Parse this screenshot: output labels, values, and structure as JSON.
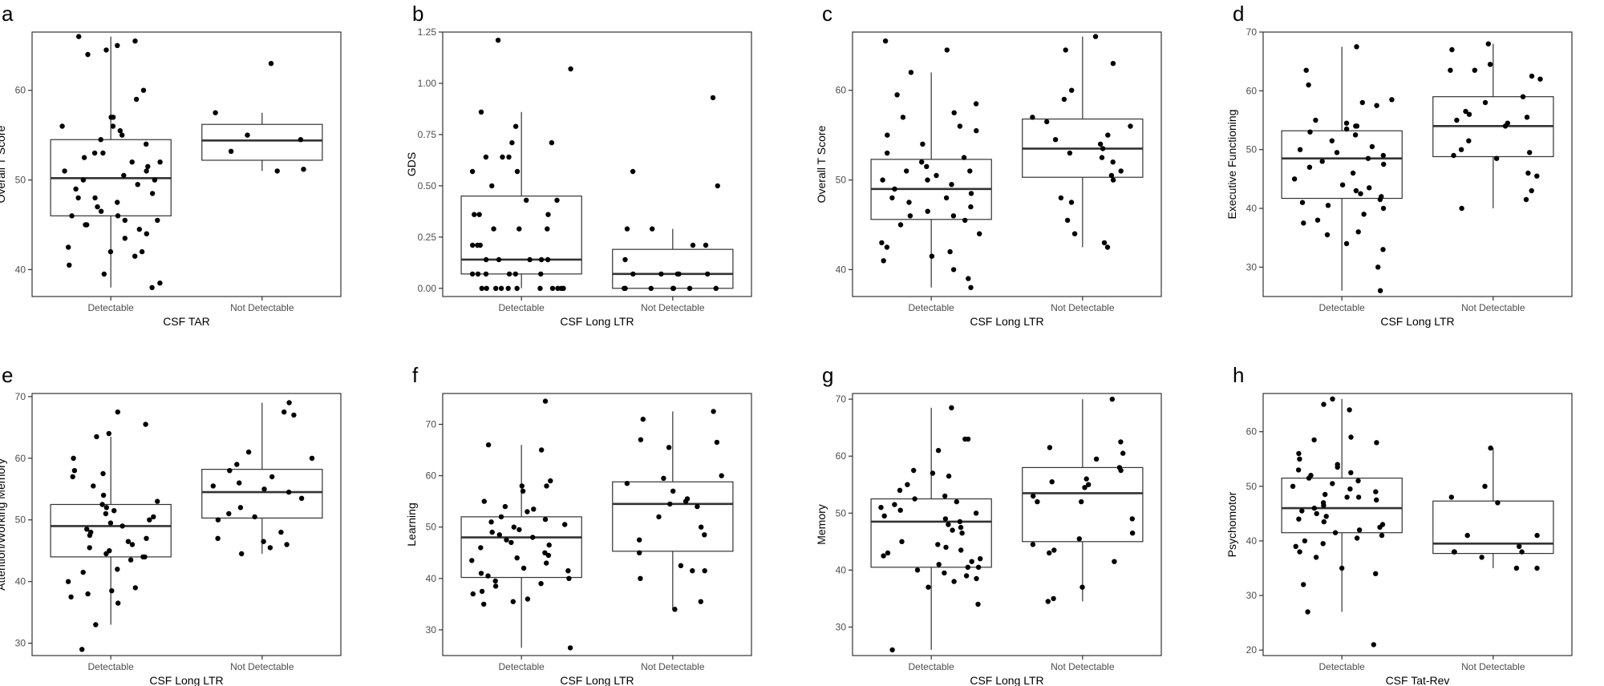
{
  "chart_data": [
    {
      "panel": "a",
      "type": "boxplot",
      "xlabel": "CSF TAR",
      "ylabel": "Overall T Score",
      "ylim": [
        37,
        66.5
      ],
      "yticks": [
        40,
        50,
        60
      ],
      "categories": [
        "Detectable",
        "Not Detectable"
      ],
      "boxes": [
        {
          "category": "Detectable",
          "whisker_low": 38,
          "q1": 46,
          "median": 50.2,
          "q3": 54.5,
          "whisker_high": 66
        },
        {
          "category": "Not Detectable",
          "whisker_low": 51,
          "q1": 52.2,
          "median": 54.4,
          "q3": 56.2,
          "whisker_high": 57.5
        }
      ],
      "points": [
        [
          66,
          65.5,
          65,
          64.5,
          64,
          60,
          59,
          57,
          57,
          56,
          56,
          55.5,
          55,
          54.5,
          54,
          53,
          53,
          52.5,
          52,
          52,
          51.5,
          51,
          51,
          50.5,
          50,
          50,
          49.5,
          49,
          48.5,
          48,
          48,
          47.5,
          47,
          46.5,
          46,
          46,
          45.5,
          45.5,
          45,
          45,
          44.5,
          44,
          43.5,
          42.5,
          42,
          42,
          41.5,
          40.5,
          39.5,
          38.5,
          38
        ],
        [
          63,
          57.5,
          55,
          54.5,
          53.2,
          51.2,
          51
        ]
      ]
    },
    {
      "panel": "b",
      "type": "boxplot",
      "xlabel": "CSF Long LTR",
      "ylabel": "GDS",
      "ylim": [
        -0.04,
        1.25
      ],
      "yticks": [
        0.0,
        0.25,
        0.5,
        0.75,
        1.0,
        1.25
      ],
      "ytick_labels": [
        "0.00",
        "0.25",
        "0.50",
        "0.75",
        "1.00",
        "1.25"
      ],
      "categories": [
        "Detectable",
        "Not Detectable"
      ],
      "boxes": [
        {
          "category": "Detectable",
          "whisker_low": 0,
          "q1": 0.07,
          "median": 0.14,
          "q3": 0.45,
          "whisker_high": 0.86
        },
        {
          "category": "Not Detectable",
          "whisker_low": 0,
          "q1": 0.0,
          "median": 0.07,
          "q3": 0.19,
          "whisker_high": 0.29
        }
      ],
      "points": [
        [
          1.21,
          1.07,
          0.86,
          0.79,
          0.71,
          0.71,
          0.64,
          0.64,
          0.64,
          0.57,
          0.57,
          0.5,
          0.43,
          0.43,
          0.36,
          0.36,
          0.36,
          0.29,
          0.29,
          0.29,
          0.21,
          0.21,
          0.21,
          0.14,
          0.14,
          0.14,
          0.14,
          0.14,
          0.07,
          0.07,
          0.07,
          0.07,
          0.07,
          0.07,
          0,
          0,
          0,
          0,
          0,
          0,
          0,
          0,
          0,
          0,
          0
        ],
        [
          0.93,
          0.57,
          0.5,
          0.29,
          0.29,
          0.21,
          0.21,
          0.14,
          0.07,
          0.07,
          0.07,
          0.07,
          0.07,
          0,
          0,
          0,
          0,
          0,
          0,
          0
        ]
      ]
    },
    {
      "panel": "c",
      "type": "boxplot",
      "xlabel": "CSF Long LTR",
      "ylabel": "Overall T Score",
      "ylim": [
        37,
        66.5
      ],
      "yticks": [
        40,
        50,
        60
      ],
      "categories": [
        "Detectable",
        "Not Detectable"
      ],
      "boxes": [
        {
          "category": "Detectable",
          "whisker_low": 38,
          "q1": 45.6,
          "median": 49,
          "q3": 52.3,
          "whisker_high": 62
        },
        {
          "category": "Not Detectable",
          "whisker_low": 42.5,
          "q1": 50.3,
          "median": 53.5,
          "q3": 56.8,
          "whisker_high": 66
        }
      ],
      "points": [
        [
          65.5,
          64.5,
          62,
          59.5,
          58.5,
          57.5,
          57,
          56,
          55.5,
          55,
          54,
          53,
          52.5,
          52,
          51.5,
          51,
          51,
          50.5,
          50,
          50,
          49.5,
          49,
          48.5,
          48,
          48,
          47.5,
          47,
          46.5,
          46,
          46,
          45.5,
          45,
          44,
          43,
          42.5,
          42,
          41.5,
          41,
          40,
          39,
          38
        ],
        [
          66,
          64.5,
          63,
          60,
          59,
          57,
          56.5,
          56,
          55,
          54.5,
          54,
          53.5,
          53,
          52.5,
          52,
          51,
          50.5,
          50,
          48,
          47.5,
          45.5,
          44,
          43,
          42.5
        ]
      ]
    },
    {
      "panel": "d",
      "type": "boxplot",
      "xlabel": "CSF Long LTR",
      "ylabel": "Executive Functioning",
      "ylim": [
        25,
        70
      ],
      "yticks": [
        30,
        40,
        50,
        60,
        70
      ],
      "categories": [
        "Detectable",
        "Not Detectable"
      ],
      "boxes": [
        {
          "category": "Detectable",
          "whisker_low": 26,
          "q1": 41.7,
          "median": 48.5,
          "q3": 53.2,
          "whisker_high": 67.5
        },
        {
          "category": "Not Detectable",
          "whisker_low": 40,
          "q1": 48.8,
          "median": 54,
          "q3": 59,
          "whisker_high": 68
        }
      ],
      "points": [
        [
          67.5,
          63.5,
          61,
          58.5,
          58,
          57.5,
          55,
          54.5,
          54,
          54,
          53.5,
          53,
          52.5,
          51.5,
          50.5,
          50,
          49.5,
          49,
          48.5,
          48,
          47.5,
          47,
          46,
          45,
          44,
          43.5,
          43,
          42.5,
          42,
          41.5,
          41,
          40.5,
          40,
          39,
          38,
          37.5,
          36,
          35.5,
          34,
          33,
          30,
          26
        ],
        [
          68,
          67,
          64.5,
          63.5,
          63.5,
          62.5,
          62,
          59,
          58,
          56.5,
          56,
          55.5,
          55,
          54.5,
          54,
          51.5,
          50,
          49.5,
          49,
          48.5,
          46,
          45.5,
          43,
          41.5,
          40
        ]
      ]
    },
    {
      "panel": "e",
      "type": "boxplot",
      "xlabel": "CSF Long LTR",
      "ylabel": "Attention/Working Memory",
      "ylim": [
        28,
        70.5
      ],
      "yticks": [
        30,
        40,
        50,
        60,
        70
      ],
      "categories": [
        "Detectable",
        "Not Detectable"
      ],
      "boxes": [
        {
          "category": "Detectable",
          "whisker_low": 33,
          "q1": 44,
          "median": 49,
          "q3": 52.5,
          "whisker_high": 63.5
        },
        {
          "category": "Not Detectable",
          "whisker_low": 44.5,
          "q1": 50.3,
          "median": 54.5,
          "q3": 58.2,
          "whisker_high": 69
        }
      ],
      "points": [
        [
          67.5,
          65.5,
          64,
          63.5,
          60,
          58,
          57.5,
          57,
          55.5,
          54,
          53,
          52.5,
          52,
          51.5,
          51,
          50.5,
          50,
          49.5,
          49,
          48.5,
          48,
          47.5,
          47,
          46.5,
          46,
          45.5,
          45,
          44.5,
          44,
          44,
          43.5,
          42,
          41.5,
          40,
          39,
          38.5,
          38,
          37.5,
          36.5,
          33,
          29
        ],
        [
          69,
          67.5,
          67,
          61,
          60,
          59,
          58,
          57,
          56,
          55.5,
          55,
          54.5,
          53.5,
          52,
          51,
          50.5,
          50,
          48,
          47,
          46.5,
          46,
          45.5,
          44.5
        ]
      ]
    },
    {
      "panel": "f",
      "type": "boxplot",
      "xlabel": "CSF Long LTR",
      "ylabel": "Learning",
      "ylim": [
        25,
        76
      ],
      "yticks": [
        30,
        40,
        50,
        60,
        70
      ],
      "categories": [
        "Detectable",
        "Not Detectable"
      ],
      "boxes": [
        {
          "category": "Detectable",
          "whisker_low": 26.5,
          "q1": 40.2,
          "median": 48,
          "q3": 52,
          "whisker_high": 66
        },
        {
          "category": "Not Detectable",
          "whisker_low": 34,
          "q1": 45.3,
          "median": 54.5,
          "q3": 58.8,
          "whisker_high": 72.5
        }
      ],
      "points": [
        [
          74.5,
          66,
          65,
          59,
          58,
          58,
          57,
          55,
          54,
          53.5,
          53,
          52,
          51.5,
          51,
          50.5,
          50,
          49.5,
          49,
          48.5,
          48,
          47.5,
          47,
          46.5,
          46,
          45,
          44.5,
          44,
          43.5,
          43,
          42,
          41.5,
          41,
          40.5,
          40,
          39.5,
          39,
          38.5,
          37.5,
          37,
          36,
          35.5,
          35,
          26.5
        ],
        [
          72.5,
          71,
          67,
          66.5,
          65.5,
          60,
          59.5,
          58.5,
          57,
          55.5,
          55,
          54.5,
          54,
          52,
          50,
          48.5,
          47.5,
          45,
          42.5,
          41.5,
          41.5,
          40,
          35.5,
          34
        ]
      ]
    },
    {
      "panel": "g",
      "type": "boxplot",
      "xlabel": "CSF Long LTR",
      "ylabel": "Memory",
      "ylim": [
        25,
        71
      ],
      "yticks": [
        30,
        40,
        50,
        60,
        70
      ],
      "categories": [
        "Detectable",
        "Not Detectable"
      ],
      "boxes": [
        {
          "category": "Detectable",
          "whisker_low": 26,
          "q1": 40.5,
          "median": 48.5,
          "q3": 52.5,
          "whisker_high": 68.5
        },
        {
          "category": "Not Detectable",
          "whisker_low": 34.5,
          "q1": 45,
          "median": 53.5,
          "q3": 58,
          "whisker_high": 70
        }
      ],
      "points": [
        [
          68.5,
          63,
          63,
          61,
          57.5,
          57,
          56.5,
          55,
          54,
          53,
          52.5,
          52,
          51.5,
          51,
          50.5,
          50,
          49.5,
          49,
          48.5,
          48,
          47.5,
          47,
          46.5,
          45,
          44.5,
          44,
          43.5,
          43,
          42.5,
          42,
          41.5,
          41,
          40.5,
          40.5,
          40,
          39.5,
          39,
          38.5,
          38,
          37,
          34,
          26
        ],
        [
          70,
          62.5,
          61.5,
          60.5,
          59.5,
          58,
          57.5,
          56,
          55.5,
          55,
          54.5,
          53,
          52,
          52,
          49,
          46.5,
          45.5,
          44.5,
          43.5,
          43,
          41.5,
          37,
          35,
          34.5
        ]
      ]
    },
    {
      "panel": "h",
      "type": "boxplot",
      "xlabel": "CSF Tat-Rev",
      "ylabel": "Psychomotor",
      "ylim": [
        19,
        67
      ],
      "yticks": [
        20,
        30,
        40,
        50,
        60
      ],
      "categories": [
        "Detectable",
        "Not Detectable"
      ],
      "boxes": [
        {
          "category": "Detectable",
          "whisker_low": 27,
          "q1": 41.5,
          "median": 46,
          "q3": 51.5,
          "whisker_high": 66
        },
        {
          "category": "Not Detectable",
          "whisker_low": 35,
          "q1": 37.7,
          "median": 39.5,
          "q3": 47.3,
          "whisker_high": 57
        }
      ],
      "points": [
        [
          66,
          65,
          64,
          59,
          58.5,
          58,
          56,
          55,
          54,
          53.5,
          53,
          52.5,
          52,
          51.5,
          51,
          50.5,
          50,
          49.5,
          49,
          48.5,
          48,
          48,
          47.5,
          47,
          46.5,
          46,
          45.5,
          45,
          44.5,
          44,
          43.5,
          43,
          42.5,
          42,
          41.5,
          41,
          40.5,
          40,
          39.5,
          39,
          38,
          37,
          35,
          34,
          32,
          27,
          21
        ],
        [
          57,
          50,
          48,
          47,
          41,
          41,
          39,
          38,
          38,
          38,
          37,
          35,
          35
        ]
      ]
    }
  ],
  "panel_letters": [
    "a",
    "b",
    "c",
    "d",
    "e",
    "f",
    "g",
    "h"
  ]
}
